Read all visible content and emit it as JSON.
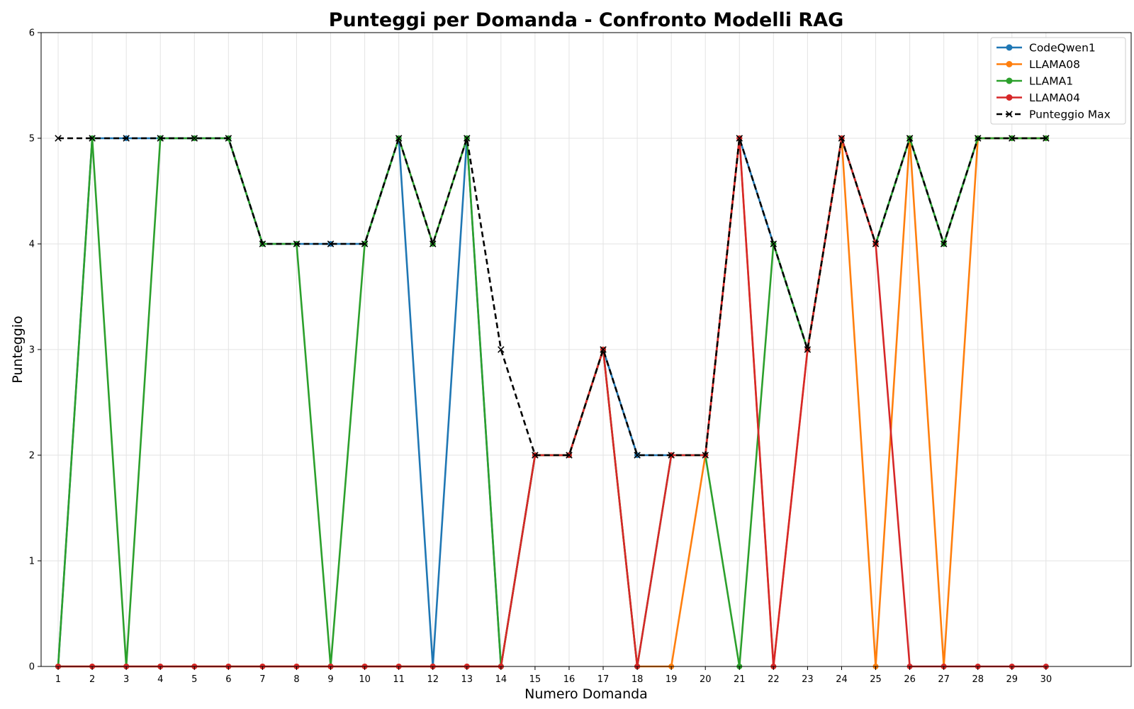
{
  "chart_data": {
    "type": "line",
    "title": "Punteggi per Domanda - Confronto Modelli RAG",
    "xlabel": "Numero Domanda",
    "ylabel": "Punteggio",
    "x": [
      1,
      2,
      3,
      4,
      5,
      6,
      7,
      8,
      9,
      10,
      11,
      12,
      13,
      14,
      15,
      16,
      17,
      18,
      19,
      20,
      21,
      22,
      23,
      24,
      25,
      26,
      27,
      28,
      29,
      30
    ],
    "ylim": [
      0,
      6
    ],
    "yticks": [
      "0",
      "1",
      "2",
      "3",
      "4",
      "5",
      "6"
    ],
    "grid": true,
    "legend_position": "top-right",
    "series": [
      {
        "name": "CodeQwen1",
        "color": "#1f77b4",
        "marker": "circle",
        "dash": "solid",
        "values": [
          0,
          5,
          5,
          5,
          5,
          5,
          4,
          4,
          4,
          4,
          5,
          0,
          5,
          0,
          2,
          2,
          3,
          2,
          2,
          2,
          5,
          4,
          3,
          5,
          4,
          5,
          4,
          5,
          5,
          5
        ]
      },
      {
        "name": "LLAMA08",
        "color": "#ff7f0e",
        "marker": "circle",
        "dash": "solid",
        "values": [
          0,
          0,
          0,
          0,
          0,
          0,
          0,
          0,
          0,
          0,
          0,
          0,
          0,
          0,
          2,
          2,
          3,
          0,
          0,
          2,
          5,
          0,
          3,
          5,
          0,
          5,
          0,
          5,
          5,
          5
        ]
      },
      {
        "name": "LLAMA1",
        "color": "#2ca02c",
        "marker": "circle",
        "dash": "solid",
        "values": [
          0,
          5,
          0,
          5,
          5,
          5,
          4,
          4,
          0,
          4,
          5,
          4,
          5,
          0,
          2,
          2,
          3,
          0,
          2,
          2,
          0,
          4,
          3,
          5,
          4,
          5,
          4,
          5,
          5,
          5
        ]
      },
      {
        "name": "LLAMA04",
        "color": "#d62728",
        "marker": "circle",
        "dash": "solid",
        "values": [
          0,
          0,
          0,
          0,
          0,
          0,
          0,
          0,
          0,
          0,
          0,
          0,
          0,
          0,
          2,
          2,
          3,
          0,
          2,
          2,
          5,
          0,
          3,
          5,
          4,
          0,
          0,
          0,
          0,
          0
        ]
      },
      {
        "name": "Punteggio Max",
        "color": "#000000",
        "marker": "x",
        "dash": "dashed",
        "values": [
          5,
          5,
          5,
          5,
          5,
          5,
          4,
          4,
          4,
          4,
          5,
          4,
          5,
          3,
          2,
          2,
          3,
          2,
          2,
          2,
          5,
          4,
          3,
          5,
          4,
          5,
          4,
          5,
          5,
          5
        ]
      }
    ]
  }
}
